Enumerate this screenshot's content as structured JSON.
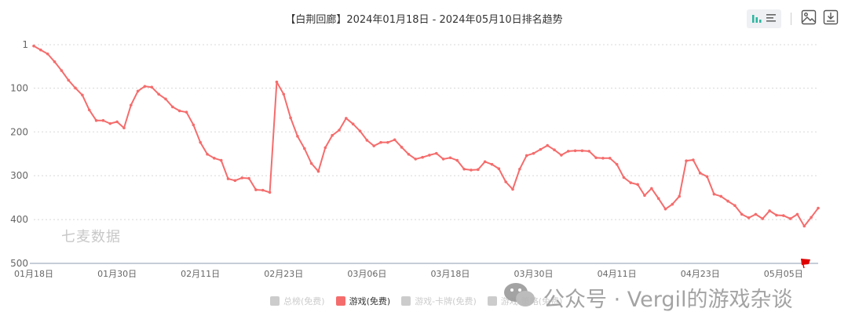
{
  "title": "【白荆回廊】2024年01月18日 - 2024年05月10日排名趋势",
  "toolbar": {
    "icons": [
      "bar-chart-icon",
      "list-icon",
      "image-icon",
      "download-icon"
    ]
  },
  "watermarks": {
    "brand": "七麦数据",
    "wechat": "公众号 · Vergil的游戏杂谈"
  },
  "legend": [
    {
      "label": "总榜(免费)",
      "active": false
    },
    {
      "label": "游戏(免费)",
      "active": true
    },
    {
      "label": "游戏-卡牌(免费)",
      "active": false
    },
    {
      "label": "游戏-策略(免费)",
      "active": false
    }
  ],
  "colors": {
    "series": "#f56c6c",
    "grid": "#e0e0e0",
    "axis": "#999999",
    "flag": "#e00000"
  },
  "chart_data": {
    "type": "line",
    "title": "【白荆回廊】2024年01月18日 - 2024年05月10日排名趋势",
    "xlabel": "",
    "ylabel": "",
    "y_inverted": true,
    "ylim": [
      1,
      500
    ],
    "yticks": [
      "1",
      "100",
      "200",
      "300",
      "400",
      "500"
    ],
    "xticks": [
      "01月18日",
      "01月30日",
      "02月11日",
      "02月23日",
      "03月06日",
      "03月18日",
      "03月30日",
      "04月11日",
      "04月23日",
      "05月05日"
    ],
    "x_start": "2024-01-18",
    "x_end": "2024-05-10",
    "grid": true,
    "legend_position": "bottom",
    "series": [
      {
        "name": "游戏(免费)",
        "values": [
          4,
          13,
          22,
          40,
          60,
          82,
          100,
          116,
          150,
          174,
          174,
          181,
          177,
          191,
          139,
          107,
          96,
          98,
          114,
          125,
          143,
          152,
          155,
          184,
          224,
          251,
          260,
          265,
          307,
          311,
          305,
          306,
          332,
          333,
          338,
          86,
          114,
          168,
          210,
          238,
          272,
          290,
          236,
          208,
          196,
          169,
          182,
          198,
          219,
          232,
          224,
          224,
          218,
          235,
          251,
          262,
          258,
          253,
          249,
          262,
          259,
          265,
          285,
          287,
          286,
          268,
          274,
          284,
          314,
          331,
          285,
          254,
          249,
          240,
          231,
          241,
          253,
          244,
          243,
          243,
          244,
          259,
          260,
          260,
          274,
          304,
          316,
          320,
          345,
          329,
          352,
          376,
          365,
          347,
          266,
          264,
          294,
          302,
          342,
          347,
          358,
          368,
          388,
          396,
          388,
          398,
          380,
          390,
          391,
          398,
          388,
          415,
          395,
          374
        ]
      }
    ]
  }
}
